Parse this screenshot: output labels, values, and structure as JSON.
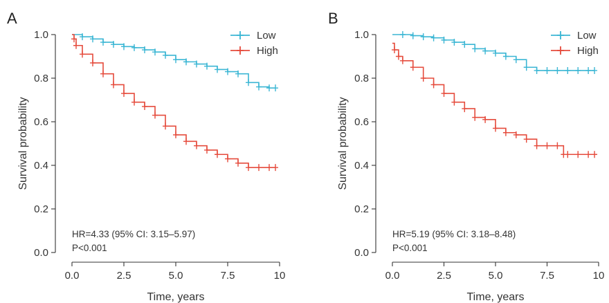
{
  "chart_data": [
    {
      "type": "line",
      "panel_label": "A",
      "xlabel": "Time, years",
      "ylabel": "Survival probability",
      "xlim": [
        0,
        10
      ],
      "ylim": [
        0,
        1.0
      ],
      "x_ticks": [
        0.0,
        2.5,
        5.0,
        7.5,
        10
      ],
      "x_tick_labels": [
        "0.0",
        "2.5",
        "5.0",
        "7.5",
        "10"
      ],
      "y_ticks": [
        0.0,
        0.2,
        0.4,
        0.6,
        0.8,
        1.0
      ],
      "y_tick_labels": [
        "0.0",
        "0.2",
        "0.4",
        "0.6",
        "0.8",
        "1.0"
      ],
      "grid": false,
      "legend_position": "top-right",
      "annotations": [
        "HR=4.33 (95% CI: 3.15–5.97)",
        "P<0.001"
      ],
      "series": [
        {
          "name": "Low",
          "color": "#3bb6d4",
          "x": [
            0.0,
            0.5,
            1.0,
            1.5,
            2.0,
            2.5,
            3.0,
            3.5,
            4.0,
            4.5,
            5.0,
            5.5,
            6.0,
            6.5,
            7.0,
            7.5,
            8.0,
            8.5,
            9.0,
            9.5,
            9.8
          ],
          "y": [
            1.0,
            0.99,
            0.98,
            0.965,
            0.955,
            0.945,
            0.94,
            0.93,
            0.92,
            0.905,
            0.885,
            0.875,
            0.865,
            0.855,
            0.84,
            0.83,
            0.82,
            0.78,
            0.76,
            0.755,
            0.755
          ]
        },
        {
          "name": "High",
          "color": "#e54b3c",
          "x": [
            0.0,
            0.1,
            0.2,
            0.5,
            1.0,
            1.5,
            2.0,
            2.5,
            3.0,
            3.5,
            4.0,
            4.5,
            5.0,
            5.5,
            6.0,
            6.5,
            7.0,
            7.5,
            8.0,
            8.5,
            9.0,
            9.5,
            9.8
          ],
          "y": [
            1.0,
            0.98,
            0.95,
            0.91,
            0.87,
            0.82,
            0.77,
            0.73,
            0.69,
            0.67,
            0.63,
            0.58,
            0.54,
            0.51,
            0.49,
            0.47,
            0.45,
            0.43,
            0.41,
            0.39,
            0.39,
            0.39,
            0.39
          ]
        }
      ]
    },
    {
      "type": "line",
      "panel_label": "B",
      "xlabel": "Time, years",
      "ylabel": "Survival probability",
      "xlim": [
        0,
        10
      ],
      "ylim": [
        0,
        1.0
      ],
      "x_ticks": [
        0.0,
        2.5,
        5.0,
        7.5,
        10
      ],
      "x_tick_labels": [
        "0.0",
        "2.5",
        "5.0",
        "7.5",
        "10"
      ],
      "y_ticks": [
        0.0,
        0.2,
        0.4,
        0.6,
        0.8,
        1.0
      ],
      "y_tick_labels": [
        "0.0",
        "0.2",
        "0.4",
        "0.6",
        "0.8",
        "1.0"
      ],
      "grid": false,
      "legend_position": "top-right",
      "annotations": [
        "HR=5.19 (95% CI: 3.18–8.48)",
        "P<0.001"
      ],
      "series": [
        {
          "name": "Low",
          "color": "#3bb6d4",
          "x": [
            0.0,
            0.5,
            1.0,
            1.5,
            2.0,
            2.5,
            3.0,
            3.5,
            4.0,
            4.5,
            5.0,
            5.5,
            6.0,
            6.5,
            7.0,
            7.5,
            8.0,
            8.5,
            9.0,
            9.5,
            9.8
          ],
          "y": [
            1.0,
            1.0,
            0.995,
            0.99,
            0.985,
            0.975,
            0.965,
            0.955,
            0.935,
            0.925,
            0.915,
            0.9,
            0.885,
            0.85,
            0.835,
            0.835,
            0.835,
            0.835,
            0.835,
            0.835,
            0.835
          ]
        },
        {
          "name": "High",
          "color": "#e54b3c",
          "x": [
            0.0,
            0.1,
            0.3,
            0.5,
            1.0,
            1.5,
            2.0,
            2.5,
            3.0,
            3.5,
            4.0,
            4.5,
            5.0,
            5.5,
            6.0,
            6.5,
            7.0,
            7.5,
            8.0,
            8.3,
            8.5,
            9.0,
            9.5,
            9.8
          ],
          "y": [
            0.96,
            0.93,
            0.9,
            0.88,
            0.85,
            0.8,
            0.77,
            0.73,
            0.69,
            0.66,
            0.62,
            0.61,
            0.57,
            0.55,
            0.54,
            0.52,
            0.49,
            0.49,
            0.49,
            0.45,
            0.45,
            0.45,
            0.45,
            0.45
          ]
        }
      ]
    }
  ]
}
